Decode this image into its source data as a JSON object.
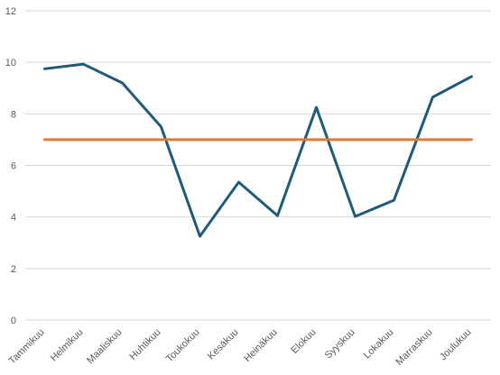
{
  "chart_data": {
    "type": "line",
    "categories": [
      "Tammikuu",
      "Helmikuu",
      "Maaliskuu",
      "Huhtikuu",
      "Toukokuu",
      "Kesäkuu",
      "Heinäkuu",
      "Elokuu",
      "Syyskuu",
      "Lokakuu",
      "Marraskuu",
      "Joulukuu"
    ],
    "series": [
      {
        "values": [
          9.75,
          9.93,
          9.2,
          7.5,
          3.25,
          5.35,
          4.05,
          8.25,
          4.02,
          4.65,
          8.65,
          9.45
        ],
        "color": "#1f5a7a"
      },
      {
        "values": [
          7,
          7,
          7,
          7,
          7,
          7,
          7,
          7,
          7,
          7,
          7,
          7
        ],
        "color": "#e07b39"
      }
    ],
    "y_ticks": [
      "0",
      "2",
      "4",
      "6",
      "8",
      "10",
      "12"
    ],
    "ylim": [
      0,
      12
    ],
    "grid": true,
    "legend": "none",
    "title": "",
    "xlabel": "",
    "ylabel": ""
  }
}
